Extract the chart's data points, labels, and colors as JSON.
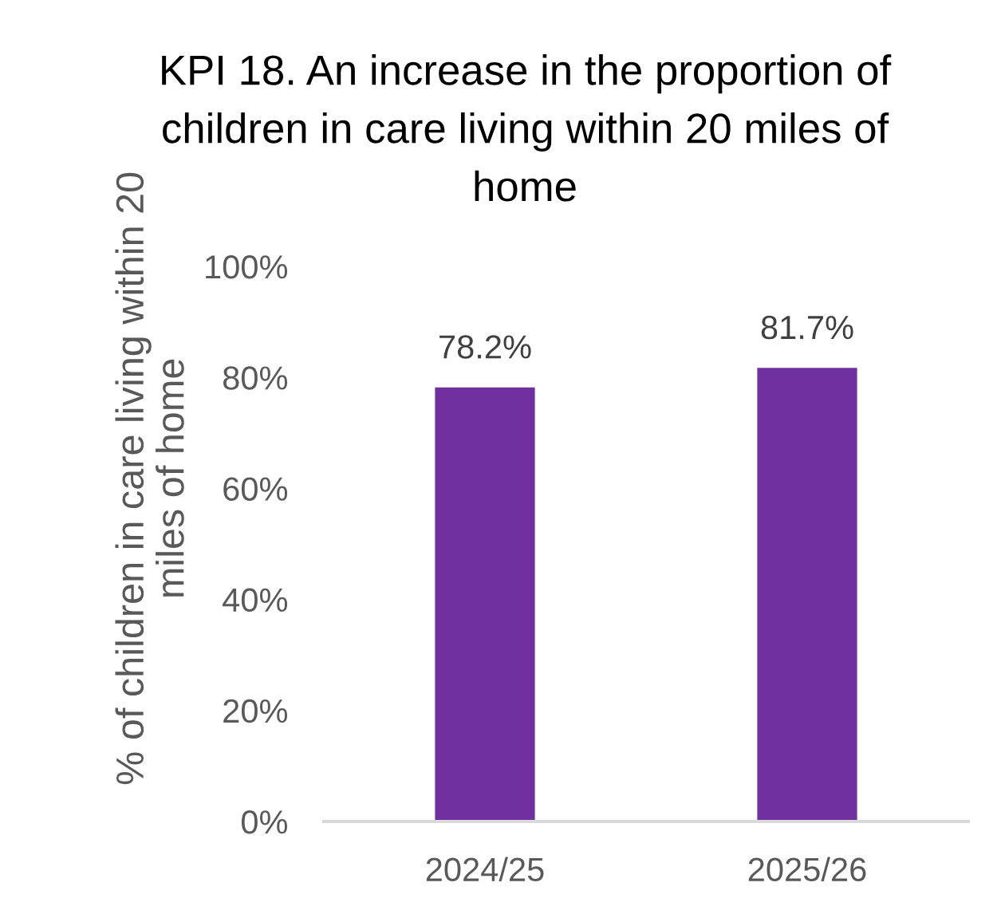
{
  "chart_data": {
    "type": "bar",
    "title": "KPI 18. An increase in the proportion of\nchildren in care living within 20 miles of\nhome",
    "ylabel": "% of children in care living within 20\nmiles of home",
    "categories": [
      "2024/25",
      "2025/26"
    ],
    "values": [
      78.2,
      81.7
    ],
    "value_labels": [
      "78.2%",
      "81.7%"
    ],
    "color": "#7030a0",
    "ylim": [
      0,
      100
    ],
    "yticks": [
      {
        "value": 0,
        "label": "0%"
      },
      {
        "value": 20,
        "label": "20%"
      },
      {
        "value": 40,
        "label": "40%"
      },
      {
        "value": 60,
        "label": "60%"
      },
      {
        "value": 80,
        "label": "80%"
      },
      {
        "value": 100,
        "label": "100%"
      }
    ],
    "grid": false
  }
}
